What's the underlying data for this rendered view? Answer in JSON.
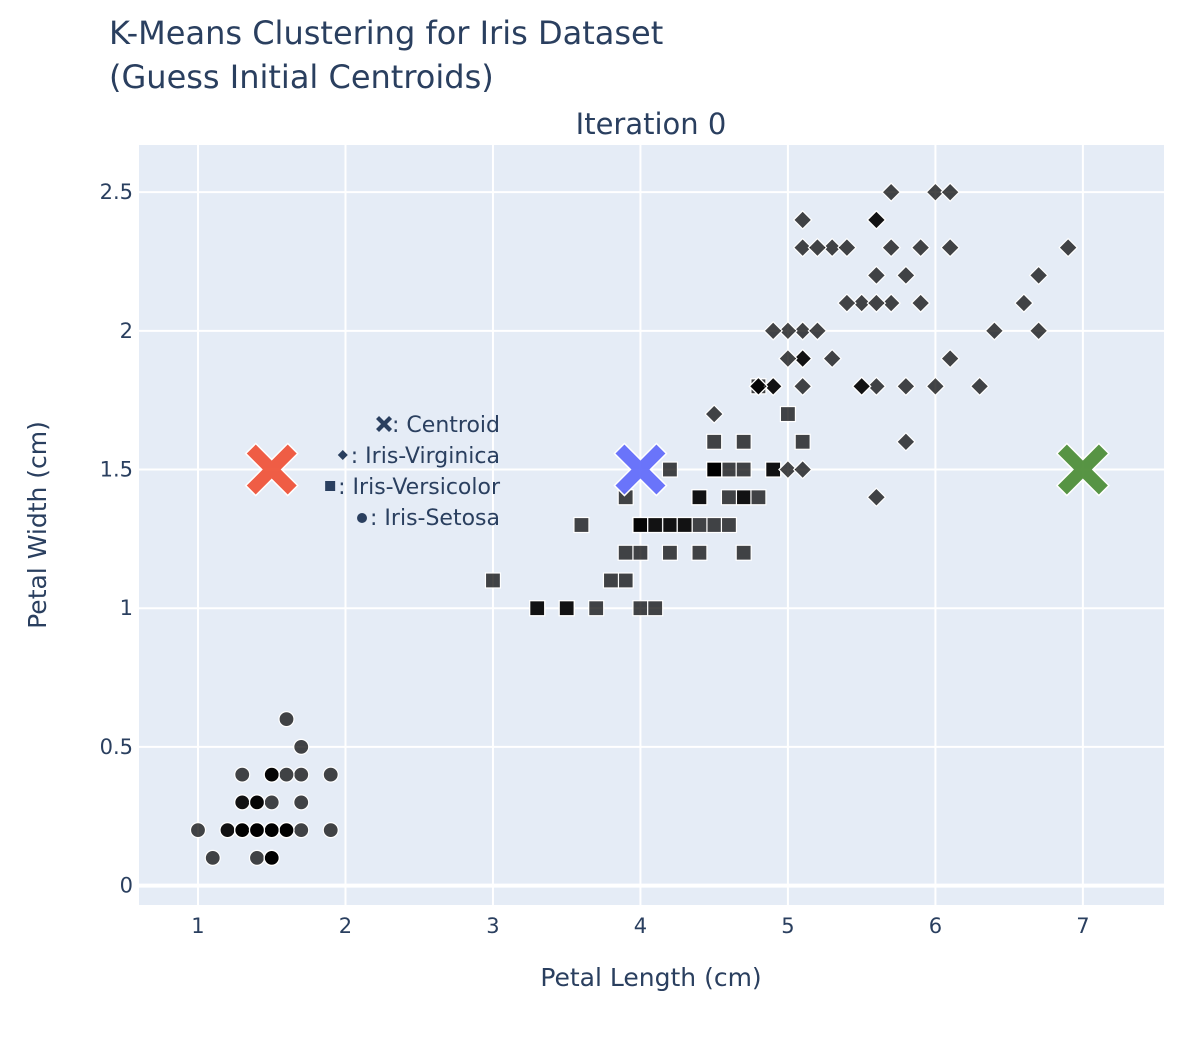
{
  "chart_data": {
    "type": "scatter",
    "title_lines": [
      "K-Means Clustering for Iris Dataset",
      "(Guess Initial Centroids)"
    ],
    "subtitle": "Iteration 0",
    "xlabel": "Petal Length (cm)",
    "ylabel": "Petal Width (cm)",
    "xlim": [
      0.6,
      7.55
    ],
    "ylim": [
      -0.07,
      2.67
    ],
    "x_ticks": [
      1,
      2,
      3,
      4,
      5,
      6,
      7
    ],
    "y_ticks": [
      0,
      0.5,
      1,
      1.5,
      2,
      2.5
    ],
    "y_tick_labels": [
      "0",
      "0.5",
      "1",
      "1.5",
      "2",
      "2.5"
    ],
    "grid": true,
    "plot_bgcolor": "#e5ecf6",
    "point_color": "#000000",
    "legend_annotation": [
      {
        "symbol": "x",
        "text": ": Centroid"
      },
      {
        "symbol": "diamond",
        "text": ": Iris-Virginica"
      },
      {
        "symbol": "square",
        "text": ": Iris-Versicolor"
      },
      {
        "symbol": "circle",
        "text": ": Iris-Setosa"
      }
    ],
    "centroids": [
      {
        "x": 1.5,
        "y": 1.5,
        "color": "#ef553b"
      },
      {
        "x": 4.0,
        "y": 1.5,
        "color": "#636efa"
      },
      {
        "x": 7.0,
        "y": 1.5,
        "color": "#4f8f3a"
      }
    ],
    "series": [
      {
        "symbol": "circle",
        "points": [
          [
            1.4,
            0.2
          ],
          [
            1.4,
            0.2
          ],
          [
            1.3,
            0.2
          ],
          [
            1.5,
            0.2
          ],
          [
            1.4,
            0.2
          ],
          [
            1.7,
            0.4
          ],
          [
            1.4,
            0.3
          ],
          [
            1.5,
            0.2
          ],
          [
            1.4,
            0.2
          ],
          [
            1.5,
            0.1
          ],
          [
            1.5,
            0.2
          ],
          [
            1.6,
            0.2
          ],
          [
            1.4,
            0.1
          ],
          [
            1.1,
            0.1
          ],
          [
            1.2,
            0.2
          ],
          [
            1.5,
            0.4
          ],
          [
            1.3,
            0.4
          ],
          [
            1.4,
            0.3
          ],
          [
            1.7,
            0.3
          ],
          [
            1.5,
            0.3
          ],
          [
            1.7,
            0.2
          ],
          [
            1.5,
            0.4
          ],
          [
            1.0,
            0.2
          ],
          [
            1.7,
            0.5
          ],
          [
            1.9,
            0.2
          ],
          [
            1.6,
            0.2
          ],
          [
            1.6,
            0.4
          ],
          [
            1.5,
            0.2
          ],
          [
            1.4,
            0.2
          ],
          [
            1.6,
            0.2
          ],
          [
            1.6,
            0.2
          ],
          [
            1.5,
            0.4
          ],
          [
            1.5,
            0.1
          ],
          [
            1.4,
            0.2
          ],
          [
            1.5,
            0.1
          ],
          [
            1.2,
            0.2
          ],
          [
            1.3,
            0.2
          ],
          [
            1.5,
            0.1
          ],
          [
            1.3,
            0.2
          ],
          [
            1.5,
            0.2
          ],
          [
            1.3,
            0.3
          ],
          [
            1.3,
            0.3
          ],
          [
            1.3,
            0.2
          ],
          [
            1.6,
            0.6
          ],
          [
            1.9,
            0.4
          ],
          [
            1.4,
            0.3
          ],
          [
            1.6,
            0.2
          ],
          [
            1.4,
            0.2
          ],
          [
            1.5,
            0.2
          ],
          [
            1.4,
            0.2
          ]
        ]
      },
      {
        "symbol": "square",
        "points": [
          [
            4.7,
            1.4
          ],
          [
            4.5,
            1.5
          ],
          [
            4.9,
            1.5
          ],
          [
            4.0,
            1.3
          ],
          [
            4.6,
            1.5
          ],
          [
            4.5,
            1.3
          ],
          [
            4.7,
            1.6
          ],
          [
            3.3,
            1.0
          ],
          [
            4.6,
            1.3
          ],
          [
            3.9,
            1.4
          ],
          [
            3.5,
            1.0
          ],
          [
            4.2,
            1.5
          ],
          [
            4.0,
            1.0
          ],
          [
            4.7,
            1.4
          ],
          [
            3.6,
            1.3
          ],
          [
            4.4,
            1.4
          ],
          [
            4.5,
            1.5
          ],
          [
            4.1,
            1.0
          ],
          [
            4.5,
            1.5
          ],
          [
            3.9,
            1.1
          ],
          [
            4.8,
            1.8
          ],
          [
            4.0,
            1.3
          ],
          [
            4.9,
            1.5
          ],
          [
            4.7,
            1.2
          ],
          [
            4.3,
            1.3
          ],
          [
            4.4,
            1.4
          ],
          [
            4.8,
            1.4
          ],
          [
            5.0,
            1.7
          ],
          [
            4.5,
            1.5
          ],
          [
            3.5,
            1.0
          ],
          [
            3.8,
            1.1
          ],
          [
            3.7,
            1.0
          ],
          [
            3.9,
            1.2
          ],
          [
            5.1,
            1.6
          ],
          [
            4.5,
            1.5
          ],
          [
            4.5,
            1.6
          ],
          [
            4.7,
            1.5
          ],
          [
            4.4,
            1.3
          ],
          [
            4.1,
            1.3
          ],
          [
            4.0,
            1.3
          ],
          [
            4.4,
            1.2
          ],
          [
            4.6,
            1.4
          ],
          [
            4.0,
            1.2
          ],
          [
            3.3,
            1.0
          ],
          [
            4.2,
            1.3
          ],
          [
            4.2,
            1.2
          ],
          [
            4.2,
            1.3
          ],
          [
            4.3,
            1.3
          ],
          [
            3.0,
            1.1
          ],
          [
            4.1,
            1.3
          ]
        ]
      },
      {
        "symbol": "diamond",
        "points": [
          [
            6.0,
            2.5
          ],
          [
            5.1,
            1.9
          ],
          [
            5.9,
            2.1
          ],
          [
            5.6,
            1.8
          ],
          [
            5.8,
            2.2
          ],
          [
            6.6,
            2.1
          ],
          [
            4.5,
            1.7
          ],
          [
            6.3,
            1.8
          ],
          [
            5.8,
            1.8
          ],
          [
            6.1,
            2.5
          ],
          [
            5.1,
            2.0
          ],
          [
            5.3,
            1.9
          ],
          [
            5.5,
            2.1
          ],
          [
            5.0,
            2.0
          ],
          [
            5.1,
            2.4
          ],
          [
            5.3,
            2.3
          ],
          [
            5.5,
            1.8
          ],
          [
            6.7,
            2.2
          ],
          [
            6.9,
            2.3
          ],
          [
            5.0,
            1.5
          ],
          [
            5.7,
            2.3
          ],
          [
            4.9,
            2.0
          ],
          [
            6.7,
            2.0
          ],
          [
            4.9,
            1.8
          ],
          [
            5.7,
            2.1
          ],
          [
            6.0,
            1.8
          ],
          [
            4.8,
            1.8
          ],
          [
            4.9,
            1.8
          ],
          [
            5.6,
            2.1
          ],
          [
            5.8,
            1.6
          ],
          [
            6.1,
            1.9
          ],
          [
            6.4,
            2.0
          ],
          [
            5.6,
            2.2
          ],
          [
            5.1,
            1.5
          ],
          [
            5.6,
            1.4
          ],
          [
            6.1,
            2.3
          ],
          [
            5.6,
            2.4
          ],
          [
            5.5,
            1.8
          ],
          [
            4.8,
            1.8
          ],
          [
            5.4,
            2.1
          ],
          [
            5.6,
            2.4
          ],
          [
            5.1,
            2.3
          ],
          [
            5.1,
            1.9
          ],
          [
            5.9,
            2.3
          ],
          [
            5.7,
            2.5
          ],
          [
            5.2,
            2.3
          ],
          [
            5.0,
            1.9
          ],
          [
            5.2,
            2.0
          ],
          [
            5.4,
            2.3
          ],
          [
            5.1,
            1.8
          ]
        ]
      }
    ]
  }
}
